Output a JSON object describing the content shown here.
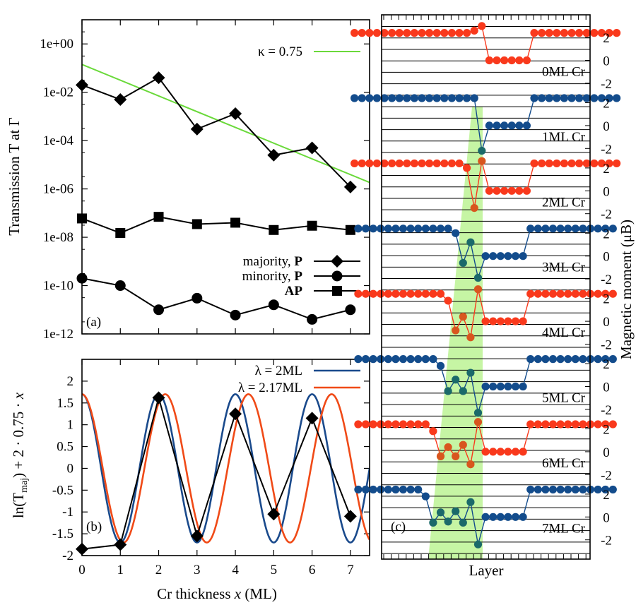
{
  "figure": {
    "shared_xlabel": "Cr thickness x (ML)",
    "colors": {
      "fit_green": "#6ad93a",
      "lambda_blue": "#1a4a8c",
      "lambda_red": "#f04a17",
      "magnetic_red": "#f9391c",
      "magnetic_blue": "#134c8c",
      "shade_green": "#c6f5a4",
      "black": "#000000"
    }
  },
  "chart_data": [
    {
      "panel": "(a)",
      "type": "line",
      "yscale": "log",
      "ylabel": "Transmission T at Γ̄",
      "ylabel_base": "Transmission T at ",
      "ylabel_symbol": "Γ",
      "xlim": [
        0,
        7.5
      ],
      "ylim_exp": [
        -12,
        1
      ],
      "ytick_labels": [
        "1e+00",
        "1e-02",
        "1e-04",
        "1e-06",
        "1e-08",
        "1e-10",
        "1e-12"
      ],
      "ytick_exps": [
        0,
        -2,
        -4,
        -6,
        -8,
        -10,
        -12
      ],
      "x": [
        0,
        1,
        2,
        3,
        4,
        5,
        6,
        7
      ],
      "series": [
        {
          "name": "majority, P",
          "name_text": "majority, ",
          "name_bold": "P",
          "marker": "diamond",
          "values": [
            0.02,
            0.005,
            0.04,
            0.0003,
            0.0013,
            2.5e-05,
            5e-05,
            1.2e-06
          ]
        },
        {
          "name": "AP",
          "name_text": "",
          "name_bold": "AP",
          "marker": "square",
          "values": [
            6e-08,
            1.5e-08,
            7e-08,
            3.5e-08,
            4e-08,
            2e-08,
            3e-08,
            2e-08
          ]
        },
        {
          "name": "minority, P",
          "name_text": "minority, ",
          "name_bold": "P",
          "marker": "circle",
          "values": [
            2e-10,
            1e-10,
            1e-11,
            3e-11,
            6e-12,
            1.6e-11,
            4e-12,
            1e-11
          ]
        }
      ],
      "fit": {
        "label": "κ = 0.75",
        "intercept_exp": -0.85,
        "slope_exp_per_ML": -0.651
      },
      "legend_order": [
        "majority, P",
        "minority, P",
        "AP"
      ]
    },
    {
      "panel": "(b)",
      "type": "line",
      "ylabel": "ln(Tmaj) + 2 · 0.75 · x",
      "ylabel_parts": {
        "a": "ln(T",
        "sub": "maj",
        "b": ") + 2 · 0.75 · ",
        "c": "x"
      },
      "xlim": [
        0,
        7.5
      ],
      "ylim": [
        -2,
        2.5
      ],
      "xtick_labels": [
        "0",
        "1",
        "2",
        "3",
        "4",
        "5",
        "6",
        "7"
      ],
      "ytick_labels": [
        "2",
        "1.5",
        "1",
        "0.5",
        "0",
        "-0.5",
        "-1",
        "-1.5",
        "-2"
      ],
      "yticks": [
        2,
        1.5,
        1,
        0.5,
        0,
        -0.5,
        -1,
        -1.5,
        -2
      ],
      "data": {
        "x": [
          0,
          1,
          2,
          3,
          4,
          5,
          6,
          7
        ],
        "y": [
          -1.85,
          -1.75,
          1.62,
          -1.55,
          1.25,
          -1.05,
          1.15,
          -1.1
        ]
      },
      "curves": [
        {
          "label": "λ = 2ML",
          "amplitude": 1.7,
          "period": 2.0,
          "color_key": "lambda_blue"
        },
        {
          "label": "λ = 2.17ML",
          "amplitude": 1.7,
          "period": 2.17,
          "color_key": "lambda_red"
        }
      ]
    },
    {
      "panel": "(c)",
      "type": "scatter",
      "xlabel": "Layer",
      "ylabel": "Magnetic moment (μB)",
      "rows": [
        {
          "label": "0ML Cr",
          "color": "red",
          "left": 16,
          "pre": [
            2.6,
            3.0
          ],
          "cr": [],
          "post": [
            0.0,
            0.0,
            0.0,
            0.0,
            0.0,
            0.0
          ],
          "right": 12
        },
        {
          "label": "1ML Cr",
          "color": "blue",
          "left": 16,
          "pre": [
            2.4
          ],
          "cr": [
            -2.2
          ],
          "post": [
            0.0,
            0.0,
            0.0,
            0.0,
            0.0,
            0.0
          ],
          "right": 12
        },
        {
          "label": "2ML Cr",
          "color": "red",
          "left": 15,
          "pre": [
            2.0
          ],
          "cr": [
            -1.5,
            2.6
          ],
          "post": [
            0.0,
            0.0,
            0.0,
            0.0,
            0.0,
            0.0
          ],
          "right": 12
        },
        {
          "label": "3ML Cr",
          "color": "blue",
          "left": 13,
          "pre": [
            2.0
          ],
          "cr": [
            -0.6,
            1.2,
            -1.9
          ],
          "post": [
            0.0,
            0.0,
            0.0,
            0.0,
            0.0,
            0.0
          ],
          "right": 12
        },
        {
          "label": "4ML Cr",
          "color": "red",
          "left": 12,
          "pre": [
            1.8
          ],
          "cr": [
            -0.8,
            0.4,
            -1.4,
            2.8
          ],
          "post": [
            0.0,
            0.0,
            0.0,
            0.0,
            0.0,
            0.0
          ],
          "right": 12
        },
        {
          "label": "5ML Cr",
          "color": "blue",
          "left": 11,
          "pre": [
            1.8
          ],
          "cr": [
            -0.4,
            0.6,
            -0.4,
            1.2,
            -2.3
          ],
          "post": [
            0.0,
            0.0,
            0.0,
            0.0,
            0.0,
            0.0
          ],
          "right": 12
        },
        {
          "label": "6ML Cr",
          "color": "red",
          "left": 10,
          "pre": [
            1.8
          ],
          "cr": [
            -0.4,
            0.4,
            -0.4,
            0.6,
            -1.1,
            2.6
          ],
          "post": [
            0.0,
            0.0,
            0.0,
            0.0,
            0.0,
            0.0
          ],
          "right": 12
        },
        {
          "label": "7ML Cr",
          "color": "blue",
          "left": 9,
          "pre": [
            1.8
          ],
          "cr": [
            -0.5,
            0.4,
            -0.4,
            0.5,
            -0.5,
            1.3,
            -2.4
          ],
          "post": [
            0.0,
            0.0,
            0.0,
            0.0,
            0.0,
            0.0
          ],
          "right": 12
        }
      ],
      "right_tick_labels": [
        "2",
        "0",
        "-2"
      ],
      "right_ticks": [
        2,
        0,
        -2
      ],
      "bulk_moment": 2.4
    }
  ]
}
